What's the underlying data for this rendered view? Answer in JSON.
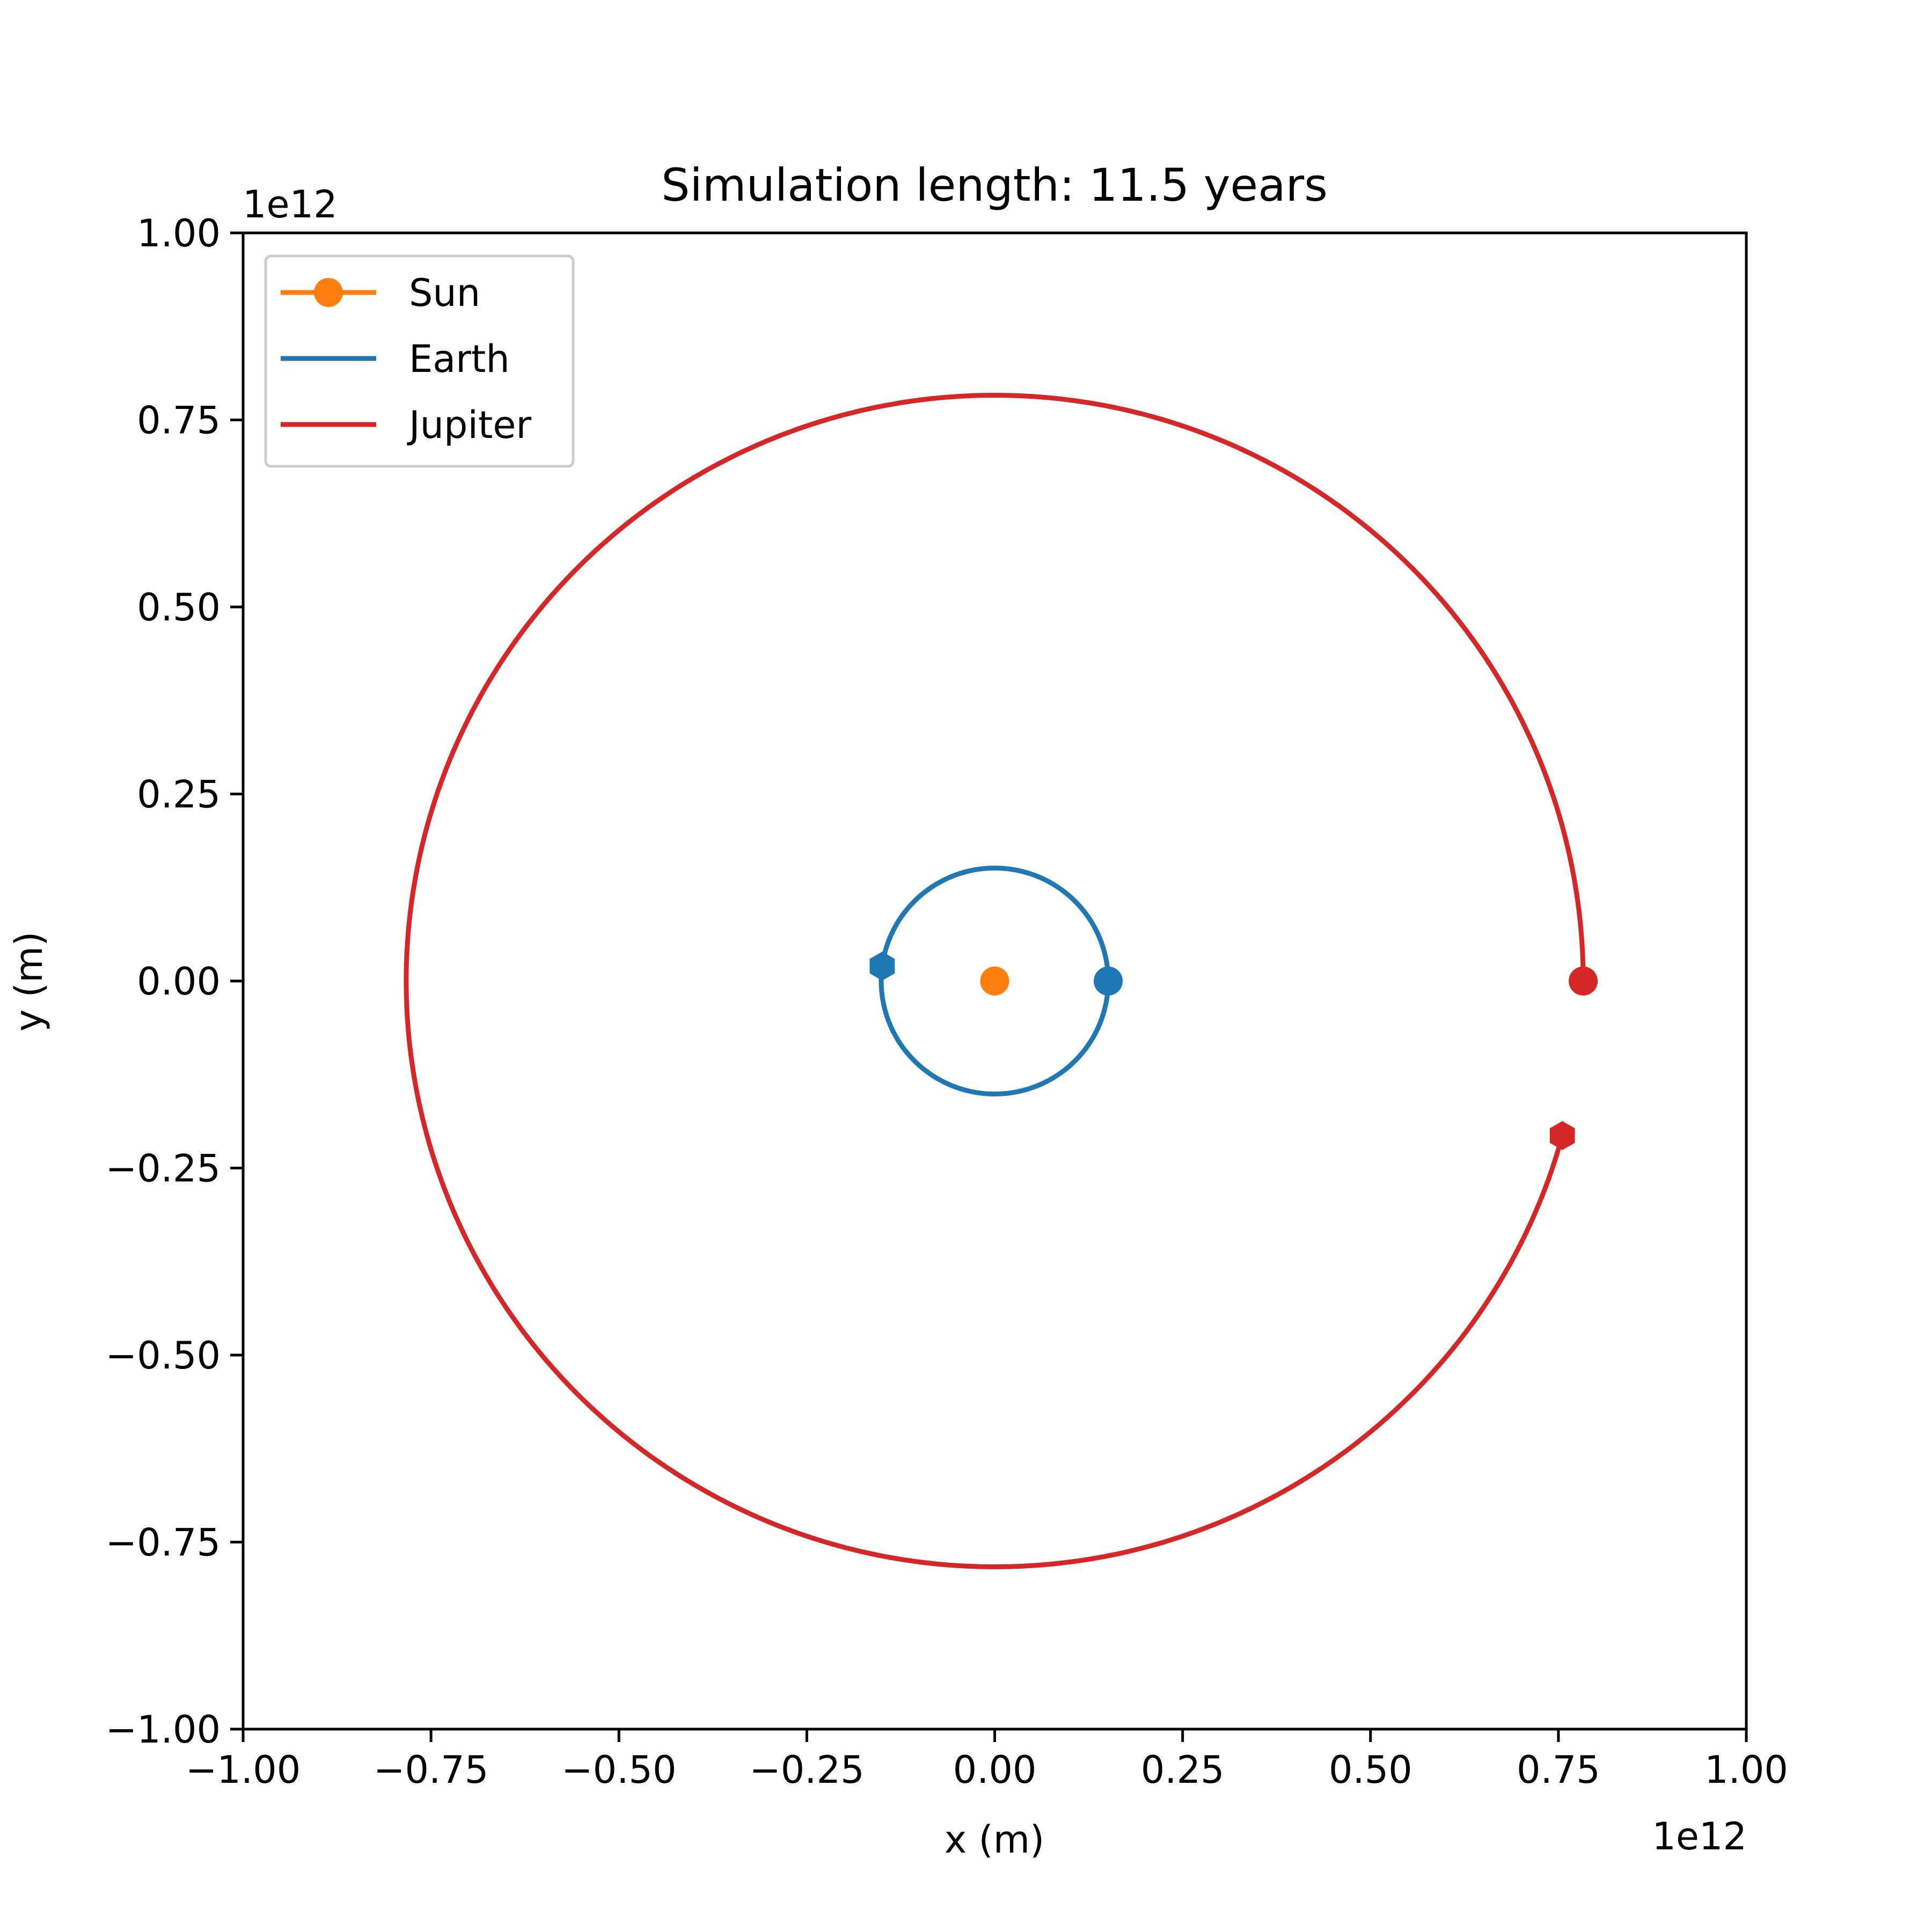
{
  "chart_data": {
    "type": "line",
    "title": "Simulation length: 11.5 years",
    "xlabel": "x (m)",
    "ylabel": "y (m)",
    "x_offset_label": "1e12",
    "y_offset_label": "1e12",
    "xlim": [
      -1.0,
      1.0
    ],
    "ylim": [
      -1.0,
      1.0
    ],
    "x_ticks": [
      -1.0,
      -0.75,
      -0.5,
      -0.25,
      0.0,
      0.25,
      0.5,
      0.75,
      1.0
    ],
    "y_ticks": [
      -1.0,
      -0.75,
      -0.5,
      -0.25,
      0.0,
      0.25,
      0.5,
      0.75,
      1.0
    ],
    "x_tick_labels": [
      "−1.00",
      "−0.75",
      "−0.50",
      "−0.25",
      "0.00",
      "0.25",
      "0.50",
      "0.75",
      "1.00"
    ],
    "y_tick_labels": [
      "−1.00",
      "−0.75",
      "−0.50",
      "−0.25",
      "0.00",
      "0.25",
      "0.50",
      "0.75",
      "1.00"
    ],
    "grid": false,
    "legend_position": "top-left",
    "series": [
      {
        "name": "Sun",
        "color": "#ff7f0e",
        "orbit_radius": 0.0,
        "start_angle_deg": 0,
        "end_angle_deg": 0,
        "start_marker": "circle",
        "end_marker": "circle"
      },
      {
        "name": "Earth",
        "color": "#1f77b4",
        "orbit_radius": 0.151,
        "start_angle_deg": 0,
        "end_angle_deg": 172.4,
        "revolutions": 1,
        "start_marker": "circle",
        "end_marker": "hexagon"
      },
      {
        "name": "Jupiter",
        "color": "#d62728",
        "orbit_radius": 0.783,
        "start_angle_deg": 0,
        "end_angle_deg": 344.7,
        "revolutions": 0,
        "start_marker": "circle",
        "end_marker": "hexagon"
      }
    ]
  }
}
